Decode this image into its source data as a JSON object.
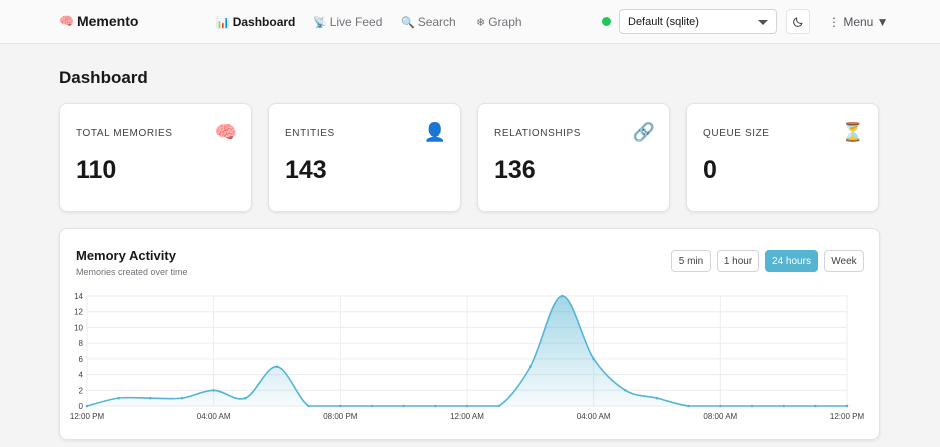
{
  "header": {
    "brand": "Memento",
    "brand_icon": "brain-icon",
    "nav": [
      {
        "icon": "📊",
        "label": "Dashboard",
        "active": true
      },
      {
        "icon": "📡",
        "label": "Live Feed",
        "active": false
      },
      {
        "icon": "🔍",
        "label": "Search",
        "active": false
      },
      {
        "icon": "❄",
        "label": "Graph",
        "active": false
      }
    ],
    "db_select_value": "Default (sqlite)",
    "menu_label": "⋮ Menu ▼",
    "status_color": "#22c55e"
  },
  "page_title": "Dashboard",
  "stats": [
    {
      "label": "TOTAL MEMORIES",
      "value": "110",
      "icon": "🧠"
    },
    {
      "label": "ENTITIES",
      "value": "143",
      "icon": "👤"
    },
    {
      "label": "RELATIONSHIPS",
      "value": "136",
      "icon": "🔗"
    },
    {
      "label": "QUEUE SIZE",
      "value": "0",
      "icon": "⏳"
    }
  ],
  "activity": {
    "title": "Memory Activity",
    "subtitle": "Memories created over time",
    "ranges": [
      {
        "label": "5 min",
        "active": false
      },
      {
        "label": "1 hour",
        "active": false
      },
      {
        "label": "24 hours",
        "active": true
      },
      {
        "label": "Week",
        "active": false
      }
    ]
  },
  "chart_data": {
    "type": "area",
    "series_color": "#56b4d3",
    "y_ticks": [
      0,
      2,
      4,
      6,
      8,
      10,
      12,
      14
    ],
    "ylim": [
      0,
      14
    ],
    "x_tick_labels": [
      "12:00 PM",
      "04:00 AM",
      "08:00 PM",
      "12:00 AM",
      "04:00 AM",
      "08:00 AM",
      "12:00 PM"
    ],
    "x_count": 25,
    "values": [
      0,
      1,
      1,
      1,
      2,
      1,
      5,
      0,
      0,
      0,
      0,
      0,
      0,
      0,
      5,
      14,
      6,
      2,
      1,
      0,
      0,
      0,
      0,
      0,
      0
    ],
    "grid": true,
    "legend": "none"
  }
}
